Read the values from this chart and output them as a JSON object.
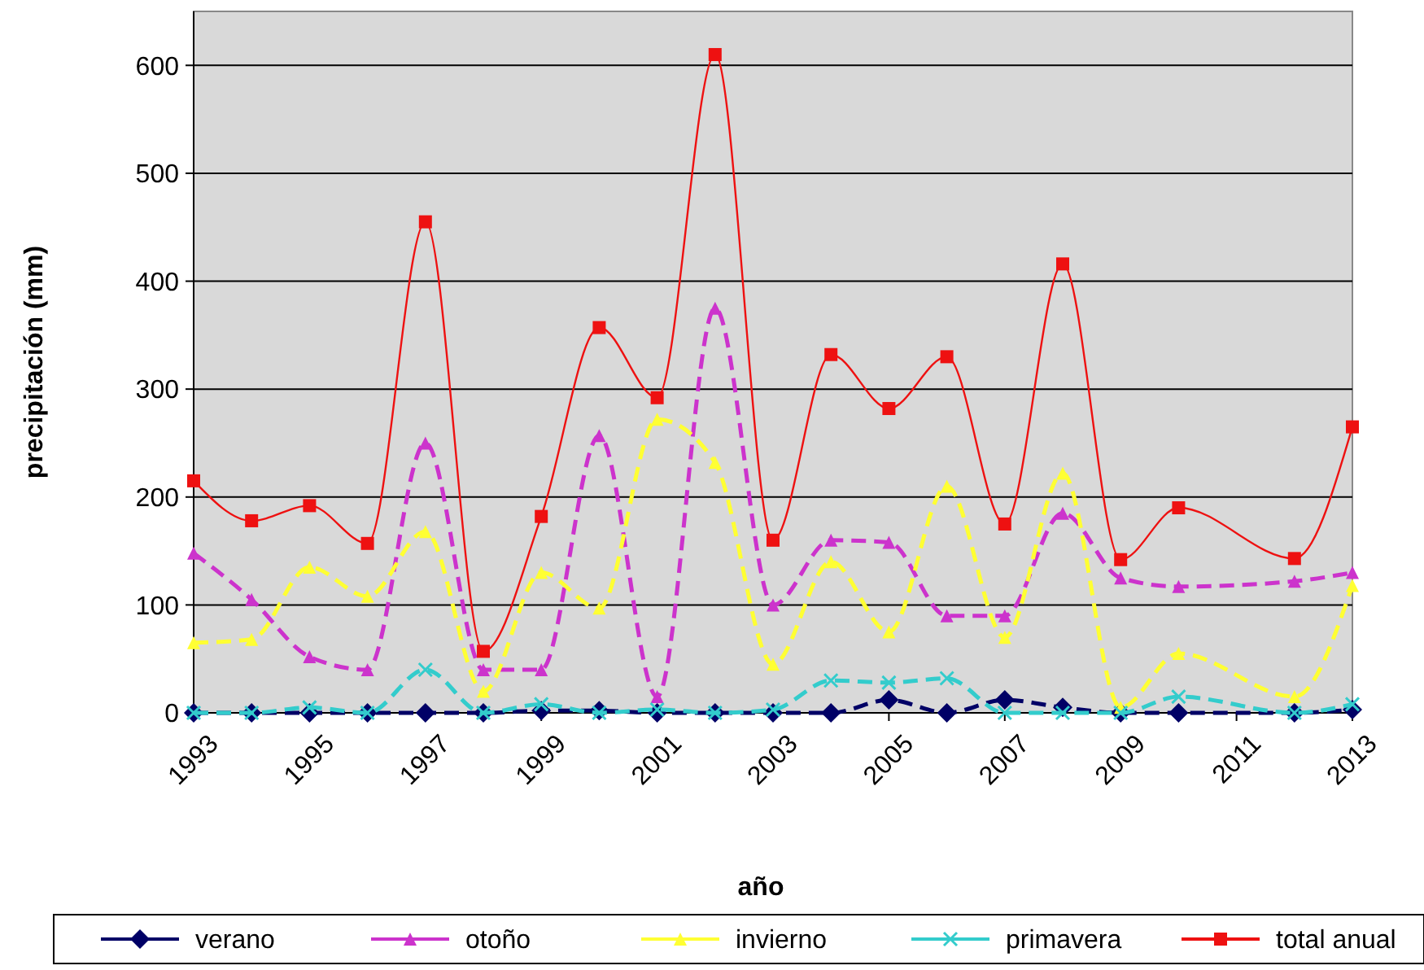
{
  "chart_data": {
    "type": "line",
    "xlabel": "año",
    "ylabel": "precipitación (mm)",
    "x": [
      1993,
      1994,
      1995,
      1996,
      1997,
      1998,
      1999,
      2000,
      2001,
      2002,
      2003,
      2004,
      2005,
      2006,
      2007,
      2008,
      2009,
      2010,
      2011,
      2012,
      2013
    ],
    "xlim": [
      1993,
      2013
    ],
    "xticks": [
      1993,
      1995,
      1997,
      1999,
      2001,
      2003,
      2005,
      2007,
      2009,
      2011,
      2013
    ],
    "ylim": [
      0,
      650
    ],
    "yticks": [
      0,
      100,
      200,
      300,
      400,
      500,
      600
    ],
    "grid": "y",
    "legend": "bottom",
    "series": [
      {
        "name": "verano",
        "color": "#000066",
        "marker": "diamond",
        "line_style": "dashed",
        "values": [
          0,
          0,
          0,
          0,
          0,
          0,
          2,
          2,
          0,
          0,
          0,
          0,
          12,
          0,
          12,
          5,
          0,
          0,
          null,
          0,
          3
        ]
      },
      {
        "name": "otoño",
        "color": "#cc33cc",
        "marker": "triangle",
        "line_style": "dashed",
        "values": [
          148,
          105,
          52,
          40,
          250,
          40,
          40,
          257,
          15,
          375,
          100,
          160,
          158,
          90,
          90,
          185,
          125,
          117,
          null,
          122,
          130
        ]
      },
      {
        "name": "invierno",
        "color": "#ffff33",
        "marker": "triangle",
        "line_style": "dashed",
        "values": [
          65,
          68,
          135,
          108,
          168,
          20,
          130,
          97,
          272,
          232,
          45,
          140,
          75,
          210,
          70,
          222,
          5,
          55,
          null,
          15,
          118
        ]
      },
      {
        "name": "primavera",
        "color": "#33cccc",
        "marker": "cross",
        "line_style": "dashed",
        "values": [
          0,
          0,
          5,
          0,
          40,
          0,
          8,
          0,
          3,
          0,
          3,
          30,
          28,
          32,
          0,
          0,
          0,
          15,
          null,
          0,
          8
        ]
      },
      {
        "name": "total anual",
        "color": "#ee1111",
        "marker": "square",
        "line_style": "solid",
        "values": [
          215,
          178,
          192,
          157,
          455,
          57,
          182,
          357,
          292,
          610,
          160,
          332,
          282,
          330,
          175,
          416,
          142,
          190,
          null,
          143,
          265
        ]
      }
    ]
  }
}
